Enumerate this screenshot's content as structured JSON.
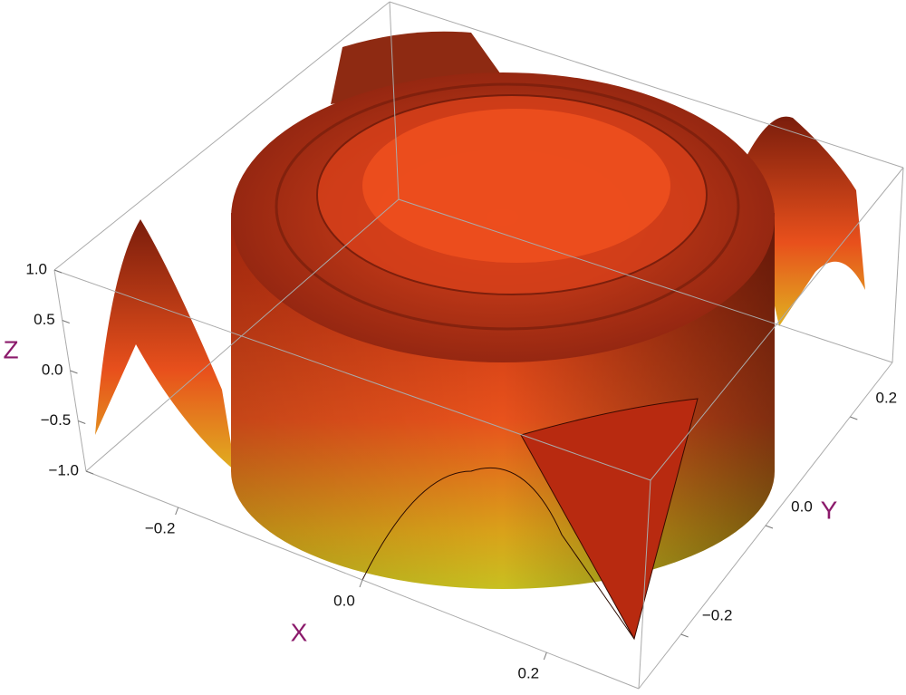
{
  "chart_data": {
    "type": "surface",
    "xlabel": "X",
    "ylabel": "Y",
    "zlabel": "Z",
    "xlim": [
      -0.3,
      0.3
    ],
    "ylim": [
      -0.3,
      0.3
    ],
    "zlim": [
      -1,
      1
    ],
    "xticks": [
      {
        "value": -0.2,
        "label": "−0.2"
      },
      {
        "value": 0,
        "label": "0.0"
      },
      {
        "value": 0.2,
        "label": "0.2"
      }
    ],
    "yticks": [
      {
        "value": -0.2,
        "label": "−0.2"
      },
      {
        "value": 0,
        "label": "0.0"
      },
      {
        "value": 0.2,
        "label": "0.2"
      }
    ],
    "zticks": [
      {
        "value": -1,
        "label": "−1.0"
      },
      {
        "value": -0.5,
        "label": "−0.5"
      },
      {
        "value": 0,
        "label": "0.0"
      },
      {
        "value": 0.5,
        "label": "0.5"
      },
      {
        "value": 1,
        "label": "1.0"
      }
    ]
  }
}
